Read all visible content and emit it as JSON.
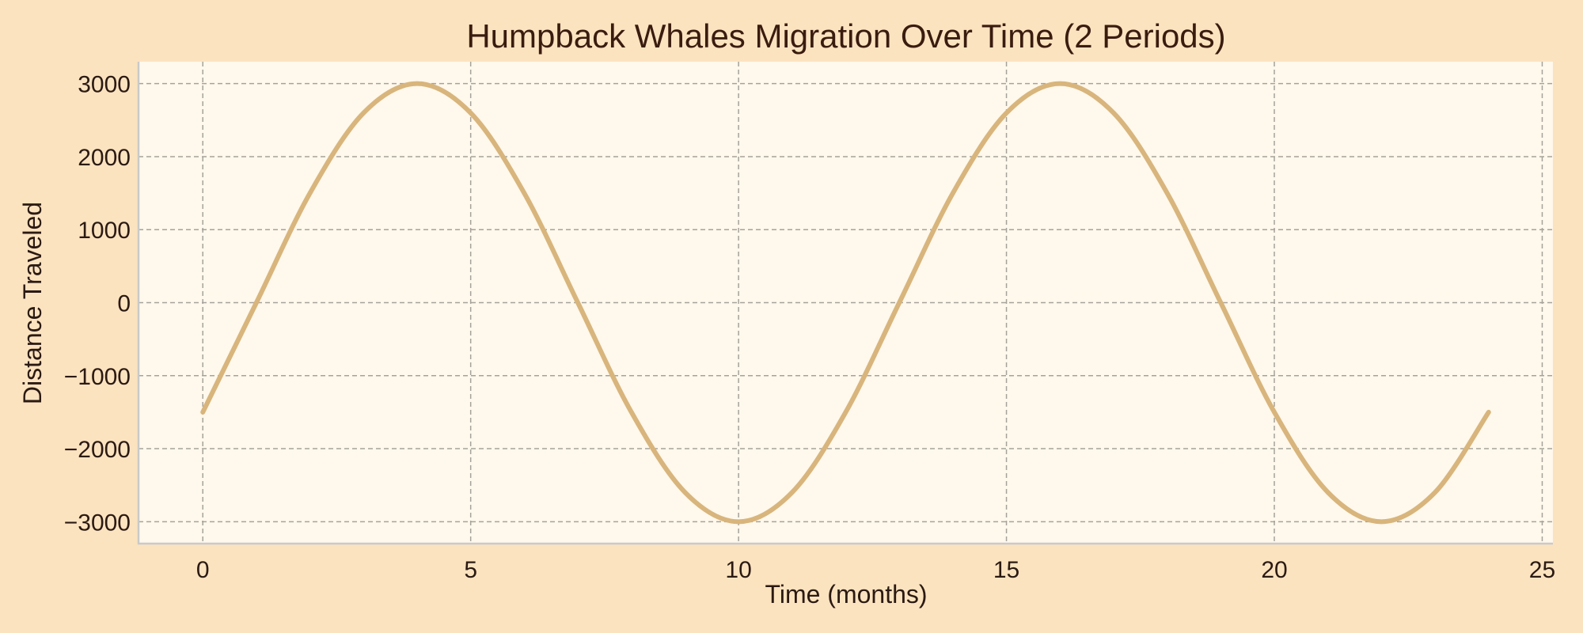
{
  "chart_data": {
    "type": "line",
    "title": "Humpback Whales Migration Over Time (2 Periods)",
    "xlabel": "Time (months)",
    "ylabel": "Distance Traveled",
    "xlim": [
      -1.2,
      25.2
    ],
    "ylim": [
      -3300,
      3300
    ],
    "xticks": [
      0,
      5,
      10,
      15,
      20,
      25
    ],
    "xtick_labels": [
      "0",
      "5",
      "10",
      "15",
      "20",
      "25"
    ],
    "yticks": [
      3000,
      2000,
      1000,
      0,
      -1000,
      -2000,
      -3000
    ],
    "ytick_labels": [
      "3000",
      "2000",
      "1000",
      "0",
      "−1000",
      "−2000",
      "−3000"
    ],
    "grid": true,
    "plot_background": "#fff8ec",
    "page_background": "#fce3c0",
    "series": [
      {
        "color": "#d8b57c",
        "x": [
          0,
          1,
          2,
          3,
          4,
          5,
          6,
          7,
          8,
          9,
          10,
          11,
          12,
          13,
          14,
          15,
          16,
          17,
          18,
          19,
          20,
          21,
          22,
          23,
          24
        ],
        "y": [
          -1500,
          0,
          1500,
          2598,
          3000,
          2598,
          1500,
          0,
          -1500,
          -2598,
          -3000,
          -2598,
          -1500,
          0,
          1500,
          2598,
          3000,
          2598,
          1500,
          0,
          -1500,
          -2598,
          -3000,
          -2598,
          -1500
        ]
      }
    ]
  }
}
